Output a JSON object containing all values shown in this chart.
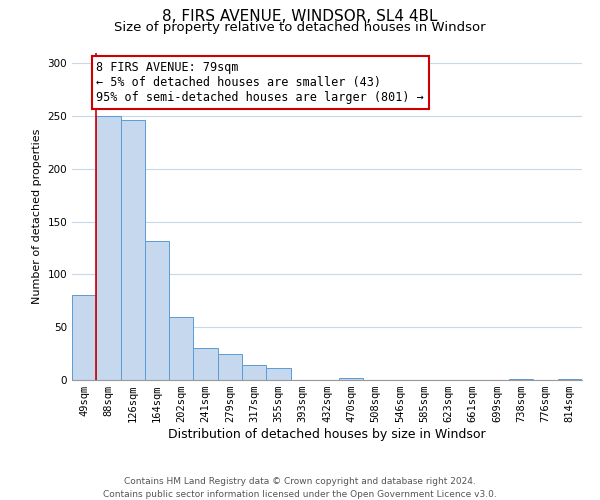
{
  "title": "8, FIRS AVENUE, WINDSOR, SL4 4BL",
  "subtitle": "Size of property relative to detached houses in Windsor",
  "xlabel": "Distribution of detached houses by size in Windsor",
  "ylabel": "Number of detached properties",
  "categories": [
    "49sqm",
    "88sqm",
    "126sqm",
    "164sqm",
    "202sqm",
    "241sqm",
    "279sqm",
    "317sqm",
    "355sqm",
    "393sqm",
    "432sqm",
    "470sqm",
    "508sqm",
    "546sqm",
    "585sqm",
    "623sqm",
    "661sqm",
    "699sqm",
    "738sqm",
    "776sqm",
    "814sqm"
  ],
  "values": [
    80,
    250,
    246,
    132,
    60,
    30,
    25,
    14,
    11,
    0,
    0,
    2,
    0,
    0,
    0,
    0,
    0,
    0,
    1,
    0,
    1
  ],
  "bar_color": "#c5d8ed",
  "bar_edge_color": "#5b9bd5",
  "marker_line_color": "#cc0000",
  "annotation_text": "8 FIRS AVENUE: 79sqm\n← 5% of detached houses are smaller (43)\n95% of semi-detached houses are larger (801) →",
  "annotation_box_color": "#ffffff",
  "annotation_box_edge_color": "#cc0000",
  "ylim": [
    0,
    310
  ],
  "yticks": [
    0,
    50,
    100,
    150,
    200,
    250,
    300
  ],
  "footer_line1": "Contains HM Land Registry data © Crown copyright and database right 2024.",
  "footer_line2": "Contains public sector information licensed under the Open Government Licence v3.0.",
  "background_color": "#ffffff",
  "grid_color": "#c8d8e8",
  "title_fontsize": 11,
  "subtitle_fontsize": 9.5,
  "xlabel_fontsize": 9,
  "ylabel_fontsize": 8,
  "tick_fontsize": 7.5,
  "annotation_fontsize": 8.5,
  "footer_fontsize": 6.5
}
